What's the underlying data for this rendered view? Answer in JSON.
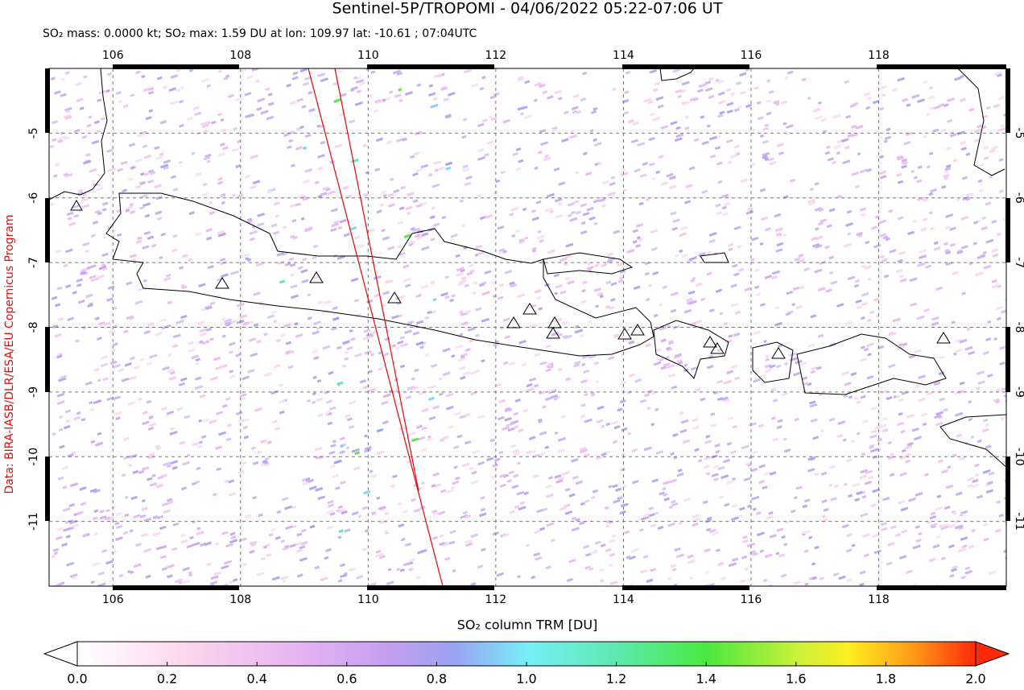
{
  "title": "Sentinel-5P/TROPOMI - 04/06/2022 05:22-07:06 UT",
  "subtitle": "SO₂ mass: 0.0000 kt; SO₂ max: 1.59 DU at lon: 109.97 lat: -10.61 ; 07:04UTC",
  "credit": "Data: BIRA-IASB/DLR/ESA/EU Copernicus Program",
  "map": {
    "lonlim": [
      105,
      120
    ],
    "latlim": [
      -12,
      -4
    ],
    "lonticks": [
      106,
      108,
      110,
      112,
      114,
      116,
      118
    ],
    "latticks": [
      -5,
      -6,
      -7,
      -8,
      -9,
      -10,
      -11
    ],
    "grid": true
  },
  "colorbar": {
    "label": "SO₂ column TRM [DU]",
    "lim": [
      0,
      2
    ],
    "ticks": [
      {
        "value": 0,
        "label": "0.0"
      },
      0.2,
      0.4,
      0.6,
      0.8,
      {
        "value": 1,
        "label": "1.0"
      },
      1.2,
      1.4,
      1.6,
      1.8,
      {
        "value": 2,
        "label": "2.0"
      }
    ]
  }
}
